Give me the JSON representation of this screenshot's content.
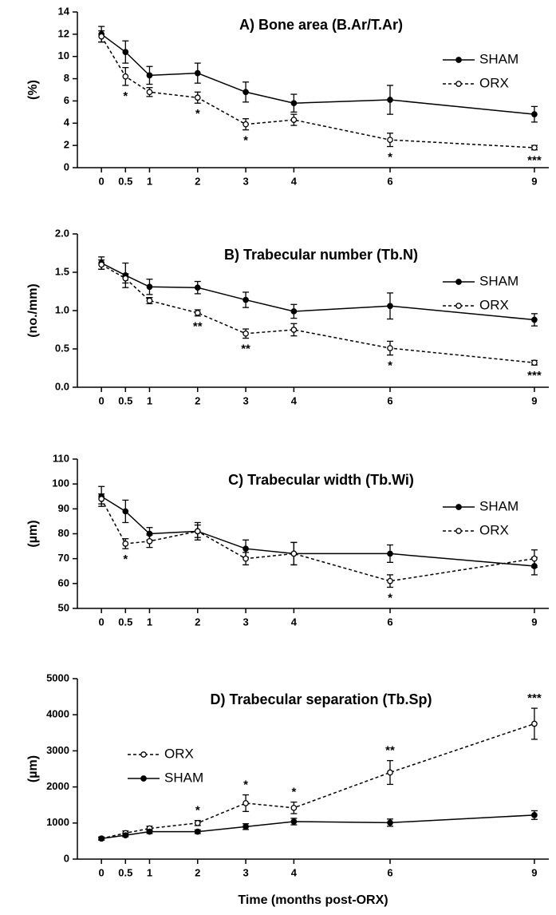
{
  "chart_data": [
    {
      "type": "line",
      "title": "A) Bone area (B.Ar/T.Ar)",
      "ylabel": "(%)",
      "x": [
        0,
        0.5,
        1,
        2,
        3,
        4,
        6,
        9
      ],
      "xlim": [
        -0.5,
        9.3
      ],
      "xticks": [
        0,
        0.5,
        1,
        2,
        3,
        4,
        6,
        9
      ],
      "ylim": [
        0,
        14
      ],
      "yticks": [
        0,
        2,
        4,
        6,
        8,
        10,
        12,
        14
      ],
      "legend": "upper right",
      "series": [
        {
          "name": "SHAM",
          "color": "#000000",
          "line_style": "solid",
          "marker": "filled",
          "values": [
            12,
            10.4,
            8.3,
            8.5,
            6.8,
            5.8,
            6.1,
            4.8
          ],
          "errors": [
            0.7,
            1.0,
            0.8,
            0.9,
            0.9,
            0.8,
            1.3,
            0.7
          ]
        },
        {
          "name": "ORX",
          "color": "#000000",
          "line_style": "dashed",
          "marker": "open",
          "values": [
            11.8,
            8.2,
            6.8,
            6.3,
            3.9,
            4.3,
            2.5,
            1.8
          ],
          "errors": [
            0.5,
            0.8,
            0.4,
            0.5,
            0.5,
            0.5,
            0.6,
            0.2
          ]
        }
      ],
      "annotations": [
        {
          "x": 0.5,
          "text": "*"
        },
        {
          "x": 2,
          "text": "*"
        },
        {
          "x": 3,
          "text": "*"
        },
        {
          "x": 6,
          "text": "*"
        },
        {
          "x": 9,
          "text": "***"
        }
      ]
    },
    {
      "type": "line",
      "title": "B) Trabecular number (Tb.N)",
      "ylabel": "(no./mm)",
      "x": [
        0,
        0.5,
        1,
        2,
        3,
        4,
        6,
        9
      ],
      "xlim": [
        -0.5,
        9.3
      ],
      "xticks": [
        0,
        0.5,
        1,
        2,
        3,
        4,
        6,
        9
      ],
      "ylim": [
        0,
        2
      ],
      "yticks": [
        {
          "value": 0,
          "label": "0.0"
        },
        0.5,
        {
          "value": 1,
          "label": "1.0"
        },
        1.5,
        {
          "value": 2,
          "label": "2.0"
        }
      ],
      "legend": "upper right",
      "series": [
        {
          "name": "SHAM",
          "color": "#000000",
          "line_style": "solid",
          "marker": "filled",
          "values": [
            1.62,
            1.46,
            1.31,
            1.3,
            1.14,
            0.99,
            1.06,
            0.88
          ],
          "errors": [
            0.08,
            0.16,
            0.1,
            0.08,
            0.1,
            0.09,
            0.17,
            0.08
          ]
        },
        {
          "name": "ORX",
          "color": "#000000",
          "line_style": "dashed",
          "marker": "open",
          "values": [
            1.6,
            1.42,
            1.13,
            0.97,
            0.7,
            0.75,
            0.51,
            0.32
          ],
          "errors": [
            0.06,
            0.06,
            0.04,
            0.04,
            0.06,
            0.08,
            0.09,
            0.03
          ]
        }
      ],
      "annotations": [
        {
          "x": 2,
          "text": "**"
        },
        {
          "x": 3,
          "text": "**"
        },
        {
          "x": 6,
          "text": "*"
        },
        {
          "x": 9,
          "text": "***"
        }
      ]
    },
    {
      "type": "line",
      "title": "C) Trabecular width (Tb.Wi)",
      "ylabel": "(µm)",
      "x": [
        0,
        0.5,
        1,
        2,
        3,
        4,
        6,
        9
      ],
      "xlim": [
        -0.5,
        9.3
      ],
      "xticks": [
        0,
        0.5,
        1,
        2,
        3,
        4,
        6,
        9
      ],
      "ylim": [
        50,
        110
      ],
      "yticks": [
        50,
        60,
        70,
        80,
        90,
        100,
        110
      ],
      "legend": "upper right",
      "series": [
        {
          "name": "SHAM",
          "color": "#000000",
          "line_style": "solid",
          "marker": "filled",
          "values": [
            95,
            89,
            80,
            81,
            74,
            72,
            72,
            67
          ],
          "errors": [
            4,
            4.5,
            2.5,
            3.5,
            3.5,
            4.5,
            3.5,
            3.5
          ]
        },
        {
          "name": "ORX",
          "color": "#000000",
          "line_style": "dashed",
          "marker": "open",
          "values": [
            94,
            76,
            77,
            81,
            70,
            72,
            61,
            70
          ],
          "errors": [
            2,
            2,
            2.5,
            2.5,
            2.5,
            4.5,
            2.5,
            3.5
          ]
        }
      ],
      "annotations": [
        {
          "x": 0.5,
          "text": "*"
        },
        {
          "x": 6,
          "text": "*"
        }
      ]
    },
    {
      "type": "line",
      "title": "D) Trabecular separation (Tb.Sp)",
      "ylabel": "(µm)",
      "xlabel": "Time (months post-ORX)",
      "x": [
        0,
        0.5,
        1,
        2,
        3,
        4,
        6,
        9
      ],
      "xlim": [
        -0.5,
        9.3
      ],
      "xticks": [
        0,
        0.5,
        1,
        2,
        3,
        4,
        6,
        9
      ],
      "ylim": [
        0,
        5000
      ],
      "yticks": [
        0,
        1000,
        2000,
        3000,
        4000,
        5000
      ],
      "legend": "upper left",
      "series": [
        {
          "name": "ORX",
          "color": "#000000",
          "line_style": "dashed",
          "marker": "open",
          "values": [
            570,
            720,
            850,
            1000,
            1550,
            1420,
            2400,
            3750
          ],
          "errors": [
            40,
            60,
            60,
            70,
            230,
            160,
            330,
            430
          ]
        },
        {
          "name": "SHAM",
          "color": "#000000",
          "line_style": "solid",
          "marker": "filled",
          "values": [
            570,
            660,
            760,
            760,
            900,
            1040,
            1010,
            1220
          ],
          "errors": [
            40,
            40,
            50,
            50,
            80,
            90,
            100,
            120
          ]
        }
      ],
      "annotations": [
        {
          "x": 2,
          "text": "*"
        },
        {
          "x": 3,
          "text": "*"
        },
        {
          "x": 4,
          "text": "*"
        },
        {
          "x": 6,
          "text": "**"
        },
        {
          "x": 9,
          "text": "***"
        }
      ]
    }
  ]
}
